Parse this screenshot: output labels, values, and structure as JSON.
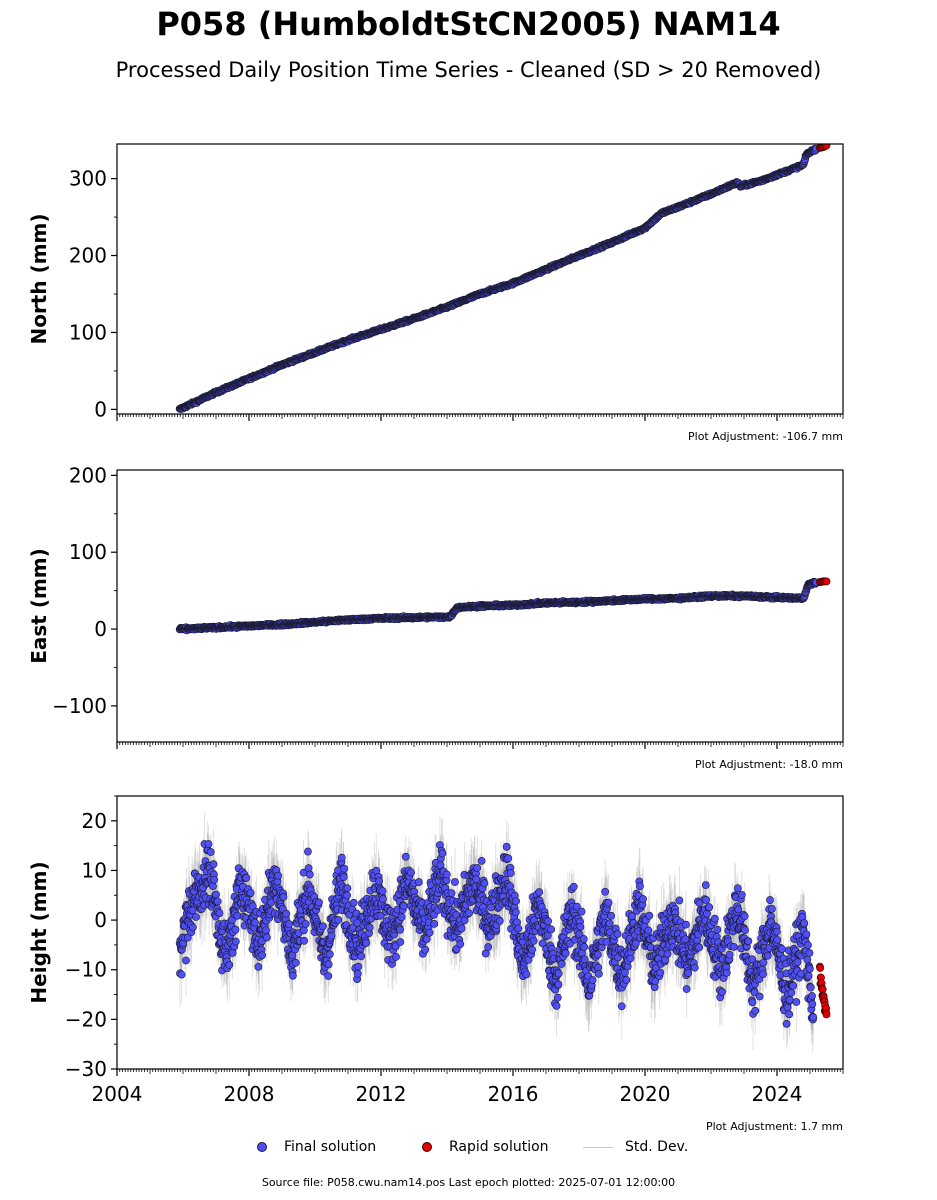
{
  "header": {
    "title": "P058 (HumboldtStCN2005) NAM14",
    "subtitle": "Processed Daily Position Time Series - Cleaned (SD > 20 Removed)"
  },
  "legend": {
    "final": "Final solution",
    "rapid": "Rapid solution",
    "stddev": "Std. Dev."
  },
  "footer": {
    "source": "Source file: P058.cwu.nam14.pos  Last epoch plotted: 2025-07-01 12:00:00"
  },
  "colors": {
    "final": "#4f4ff5",
    "rapid": "#e00000",
    "stddev": "#8a8a8a",
    "marker_edge": "#1a1a2e"
  },
  "chart_data": [
    {
      "type": "scatter",
      "ylabel": "North (mm)",
      "xlim": [
        2004.0,
        2026.0
      ],
      "ylim": [
        -6,
        345
      ],
      "yticks": [
        0,
        100,
        200,
        300
      ],
      "xticks_labeled": false,
      "adjustment": "Plot Adjustment: -106.7 mm",
      "series": [
        {
          "name": "Final solution",
          "x": [
            2005.9,
            2007.0,
            2008.0,
            2009.0,
            2010.0,
            2011.0,
            2012.0,
            2013.0,
            2014.0,
            2015.0,
            2016.0,
            2017.0,
            2018.0,
            2019.0,
            2020.0,
            2020.5,
            2021.0,
            2022.0,
            2022.8,
            2022.9,
            2023.5,
            2024.0,
            2024.8,
            2024.9,
            2025.2
          ],
          "y": [
            0,
            22,
            40,
            58,
            74,
            90,
            104,
            118,
            133,
            150,
            164,
            182,
            200,
            217,
            236,
            255,
            263,
            280,
            295,
            290,
            297,
            305,
            318,
            332,
            339
          ]
        },
        {
          "name": "Rapid solution",
          "x": [
            2025.3,
            2025.4,
            2025.5
          ],
          "y": [
            340,
            341,
            343
          ]
        }
      ]
    },
    {
      "type": "scatter",
      "ylabel": "East (mm)",
      "xlim": [
        2004.0,
        2026.0
      ],
      "ylim": [
        -147,
        207
      ],
      "yticks": [
        -100,
        0,
        100,
        200
      ],
      "xticks_labeled": false,
      "adjustment": "Plot Adjustment: -18.0 mm",
      "series": [
        {
          "name": "Final solution",
          "x": [
            2005.9,
            2007.0,
            2008.0,
            2009.0,
            2010.0,
            2011.0,
            2012.0,
            2013.0,
            2014.1,
            2014.3,
            2015.0,
            2016.0,
            2017.0,
            2018.0,
            2019.0,
            2020.0,
            2021.0,
            2022.0,
            2023.0,
            2024.0,
            2024.8,
            2024.95,
            2025.2
          ],
          "y": [
            0,
            2,
            4,
            6,
            9,
            12,
            14,
            15,
            16,
            28,
            30,
            31,
            34,
            35,
            37,
            39,
            40,
            43,
            43,
            41,
            40,
            58,
            61
          ]
        },
        {
          "name": "Rapid solution",
          "x": [
            2025.3,
            2025.4,
            2025.5
          ],
          "y": [
            61,
            62,
            62
          ]
        }
      ]
    },
    {
      "type": "scatter",
      "ylabel": "Height (mm)",
      "xlim": [
        2004.0,
        2026.0
      ],
      "ylim": [
        -30,
        25
      ],
      "yticks": [
        -30,
        -20,
        -10,
        0,
        10,
        20
      ],
      "xticks": [
        2004,
        2008,
        2012,
        2016,
        2020,
        2024
      ],
      "xticks_labeled": true,
      "adjustment": "Plot Adjustment: 1.7 mm",
      "series": [
        {
          "name": "Final solution",
          "x": [
            2005.9,
            2006.3,
            2006.8,
            2007.3,
            2007.8,
            2008.3,
            2008.8,
            2009.3,
            2009.8,
            2010.3,
            2010.8,
            2011.3,
            2011.8,
            2012.3,
            2012.8,
            2013.3,
            2013.8,
            2014.3,
            2014.8,
            2015.3,
            2015.8,
            2016.3,
            2016.8,
            2017.3,
            2017.8,
            2018.3,
            2018.8,
            2019.3,
            2019.8,
            2020.3,
            2020.8,
            2021.3,
            2021.8,
            2022.3,
            2022.8,
            2023.3,
            2023.8,
            2024.3,
            2024.8,
            2025.1
          ],
          "y": [
            -6,
            4,
            10,
            -8,
            8,
            -5,
            9,
            -7,
            7,
            -8,
            8,
            -6,
            7,
            -4,
            8,
            -3,
            9,
            -2,
            8,
            -1,
            10,
            -9,
            3,
            -12,
            2,
            -13,
            1,
            -11,
            3,
            -10,
            1,
            -9,
            2,
            -10,
            3,
            -14,
            0,
            -15,
            -2,
            -18
          ]
        },
        {
          "name": "Rapid solution",
          "x": [
            2025.3,
            2025.35,
            2025.4,
            2025.45,
            2025.5
          ],
          "y": [
            -10,
            -13,
            -15,
            -17,
            -19
          ]
        }
      ]
    }
  ]
}
